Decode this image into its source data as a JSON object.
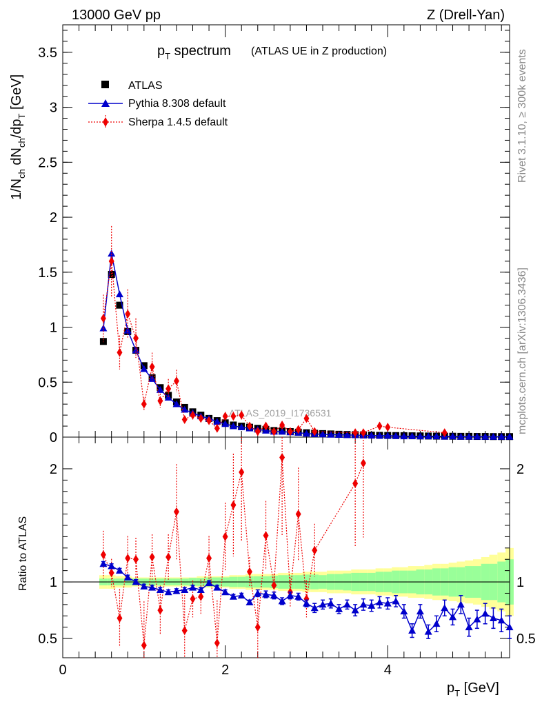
{
  "header": {
    "energy": "13000 GeV pp",
    "process": "Z (Drell-Yan)"
  },
  "side_text": {
    "rivet": "Rivet 3.1.10, ≥ 300k events",
    "source": "mcplots.cern.ch [arXiv:1306.3436]"
  },
  "plot_title": {
    "main": "p",
    "main_sub": "T",
    "main_rest": " spectrum",
    "note": "(ATLAS UE in Z production)"
  },
  "watermark": "ATLAS_2019_I1736531",
  "colors": {
    "atlas": "#000000",
    "pythia": "#0000cc",
    "sherpa": "#ee0000",
    "band_inner": "#99ff99",
    "band_outer": "#ffff99"
  },
  "chart_data": [
    {
      "type": "scatter",
      "panel": "main",
      "ylabel": "1/N_ch dN_ch/dp_T [GeV]",
      "ylabel_parts": {
        "a": "1/N",
        "a_sub": "ch",
        "b": " dN",
        "b_sub": "ch",
        "c": "/dp",
        "c_sub": "T",
        "d": " [GeV]"
      },
      "xlim": [
        0,
        5.5
      ],
      "ylim": [
        0,
        3.75
      ],
      "yticks": [
        0,
        0.5,
        1,
        1.5,
        2,
        2.5,
        3,
        3.5
      ],
      "ytick_labels": [
        "0",
        "0.5",
        "1",
        "1.5",
        "2",
        "2.5",
        "3",
        "3.5"
      ],
      "x": [
        0.5,
        0.6,
        0.7,
        0.8,
        0.9,
        1.0,
        1.1,
        1.2,
        1.3,
        1.4,
        1.5,
        1.6,
        1.7,
        1.8,
        1.9,
        2.0,
        2.1,
        2.2,
        2.3,
        2.4,
        2.5,
        2.6,
        2.7,
        2.8,
        2.9,
        3.0,
        3.1,
        3.2,
        3.3,
        3.4,
        3.5,
        3.6,
        3.7,
        3.8,
        3.9,
        4.0,
        4.1,
        4.2,
        4.3,
        4.4,
        4.5,
        4.6,
        4.7,
        4.8,
        4.9,
        5.0,
        5.1,
        5.2,
        5.3,
        5.4,
        5.5
      ],
      "series": [
        {
          "name": "ATLAS",
          "marker": "square",
          "values": [
            0.87,
            1.48,
            1.2,
            0.96,
            0.79,
            0.65,
            0.54,
            0.45,
            0.38,
            0.32,
            0.27,
            0.23,
            0.2,
            0.17,
            0.15,
            0.13,
            0.11,
            0.1,
            0.09,
            0.08,
            0.07,
            0.06,
            0.055,
            0.05,
            0.045,
            0.04,
            0.035,
            0.032,
            0.029,
            0.026,
            0.024,
            0.022,
            0.02,
            0.018,
            0.016,
            0.015,
            0.014,
            0.013,
            0.012,
            0.011,
            0.01,
            0.009,
            0.008,
            0.008,
            0.007,
            0.007,
            0.006,
            0.006,
            0.005,
            0.005,
            0.005
          ]
        },
        {
          "name": "Pythia 8.308 default",
          "marker": "triangle",
          "values": [
            0.99,
            1.67,
            1.3,
            0.97,
            0.79,
            0.62,
            0.53,
            0.43,
            0.36,
            0.3,
            0.25,
            0.22,
            0.19,
            0.17,
            0.14,
            0.12,
            0.1,
            0.09,
            0.08,
            0.07,
            0.06,
            0.05,
            0.05,
            0.045,
            0.04,
            0.032,
            0.028,
            0.026,
            0.023,
            0.021,
            0.019,
            0.018,
            0.016,
            0.015,
            0.013,
            0.013,
            0.011,
            0.008,
            0.009,
            0.007,
            0.008,
            0.008,
            0.006,
            0.007,
            0.005,
            0.005,
            0.005,
            0.004,
            0.004,
            0.004,
            0.004
          ]
        },
        {
          "name": "Sherpa 1.4.5 default",
          "marker": "diamond",
          "x": [
            0.5,
            0.6,
            0.7,
            0.8,
            0.9,
            1.0,
            1.1,
            1.2,
            1.3,
            1.4,
            1.5,
            1.6,
            1.7,
            1.8,
            1.9,
            2.0,
            2.1,
            2.2,
            2.3,
            2.4,
            2.5,
            2.6,
            2.7,
            2.8,
            2.9,
            3.0,
            3.1,
            3.6,
            3.7,
            3.9,
            4.0,
            4.7
          ],
          "values": [
            1.08,
            1.6,
            0.77,
            1.12,
            0.9,
            0.3,
            0.64,
            0.33,
            0.44,
            0.51,
            0.16,
            0.2,
            0.17,
            0.15,
            0.08,
            0.19,
            0.19,
            0.2,
            0.1,
            0.05,
            0.1,
            0.05,
            0.11,
            0.05,
            0.07,
            0.17,
            0.05,
            0.04,
            0.04,
            0.1,
            0.09,
            0.04
          ]
        }
      ]
    },
    {
      "type": "scatter",
      "panel": "ratio",
      "ylabel": "Ratio to ATLAS",
      "xlabel": "p_T [GeV]",
      "xlabel_parts": {
        "a": "p",
        "a_sub": "T",
        "b": " [GeV]"
      },
      "xlim": [
        0,
        5.5
      ],
      "ylim": [
        0.33,
        2.28
      ],
      "xticks": [
        0,
        2,
        4
      ],
      "xtick_labels": [
        "0",
        "2",
        "4"
      ],
      "yticks": [
        0.5,
        1,
        2
      ],
      "ytick_labels": [
        "0.5",
        "1",
        "2"
      ],
      "x": [
        0.5,
        0.6,
        0.7,
        0.8,
        0.9,
        1.0,
        1.1,
        1.2,
        1.3,
        1.4,
        1.5,
        1.6,
        1.7,
        1.8,
        1.9,
        2.0,
        2.1,
        2.2,
        2.3,
        2.4,
        2.5,
        2.6,
        2.7,
        2.8,
        2.9,
        3.0,
        3.1,
        3.2,
        3.3,
        3.4,
        3.5,
        3.6,
        3.7,
        3.8,
        3.9,
        4.0,
        4.1,
        4.2,
        4.3,
        4.4,
        4.5,
        4.6,
        4.7,
        4.8,
        4.9,
        5.0,
        5.1,
        5.2,
        5.3,
        5.4,
        5.5
      ],
      "band_inner_halfwidth": [
        0.03,
        0.03,
        0.03,
        0.03,
        0.03,
        0.03,
        0.03,
        0.03,
        0.03,
        0.03,
        0.03,
        0.035,
        0.035,
        0.04,
        0.04,
        0.04,
        0.045,
        0.045,
        0.05,
        0.05,
        0.05,
        0.055,
        0.06,
        0.06,
        0.06,
        0.065,
        0.065,
        0.06,
        0.07,
        0.07,
        0.075,
        0.08,
        0.08,
        0.08,
        0.09,
        0.09,
        0.1,
        0.1,
        0.1,
        0.11,
        0.11,
        0.12,
        0.12,
        0.13,
        0.13,
        0.14,
        0.14,
        0.16,
        0.16,
        0.18,
        0.2
      ],
      "band_outer_halfwidth": [
        0.06,
        0.06,
        0.05,
        0.05,
        0.04,
        0.04,
        0.04,
        0.04,
        0.04,
        0.04,
        0.04,
        0.04,
        0.05,
        0.05,
        0.05,
        0.05,
        0.06,
        0.06,
        0.07,
        0.07,
        0.07,
        0.07,
        0.08,
        0.08,
        0.08,
        0.09,
        0.09,
        0.09,
        0.1,
        0.1,
        0.1,
        0.11,
        0.11,
        0.11,
        0.12,
        0.12,
        0.13,
        0.13,
        0.14,
        0.14,
        0.15,
        0.16,
        0.16,
        0.17,
        0.18,
        0.19,
        0.2,
        0.22,
        0.24,
        0.26,
        0.3
      ],
      "series": [
        {
          "name": "Pythia 8.308 default",
          "values": [
            1.16,
            1.14,
            1.1,
            1.04,
            1.0,
            0.96,
            0.95,
            0.93,
            0.91,
            0.92,
            0.93,
            0.95,
            0.93,
            0.99,
            0.95,
            0.91,
            0.87,
            0.88,
            0.82,
            0.9,
            0.89,
            0.88,
            0.83,
            0.88,
            0.87,
            0.81,
            0.77,
            0.8,
            0.81,
            0.76,
            0.8,
            0.75,
            0.8,
            0.79,
            0.82,
            0.81,
            0.83,
            0.74,
            0.57,
            0.74,
            0.56,
            0.63,
            0.77,
            0.69,
            0.8,
            0.6,
            0.67,
            0.72,
            0.68,
            0.66,
            0.6
          ],
          "err": [
            0.02,
            0.02,
            0.02,
            0.02,
            0.02,
            0.02,
            0.02,
            0.02,
            0.02,
            0.02,
            0.02,
            0.02,
            0.02,
            0.02,
            0.02,
            0.02,
            0.02,
            0.02,
            0.02,
            0.03,
            0.03,
            0.03,
            0.03,
            0.03,
            0.03,
            0.03,
            0.04,
            0.04,
            0.04,
            0.04,
            0.04,
            0.05,
            0.05,
            0.05,
            0.05,
            0.05,
            0.05,
            0.06,
            0.06,
            0.06,
            0.06,
            0.07,
            0.07,
            0.07,
            0.08,
            0.08,
            0.08,
            0.09,
            0.09,
            0.1,
            0.1
          ]
        },
        {
          "name": "Sherpa 1.4.5 default",
          "x": [
            0.5,
            0.6,
            0.7,
            0.8,
            0.9,
            1.0,
            1.1,
            1.2,
            1.3,
            1.4,
            1.5,
            1.6,
            1.7,
            1.8,
            1.9,
            2.0,
            2.1,
            2.2,
            2.3,
            2.4,
            2.5,
            2.6,
            2.7,
            2.8,
            2.9,
            3.0,
            3.1,
            3.6,
            3.7
          ],
          "values": [
            1.24,
            1.08,
            0.68,
            1.21,
            1.2,
            0.44,
            1.22,
            0.75,
            1.22,
            1.62,
            0.57,
            0.85,
            0.87,
            1.21,
            0.46,
            1.4,
            1.68,
            1.97,
            1.09,
            0.6,
            1.41,
            0.97,
            2.1,
            0.91,
            1.6,
            0.85,
            1.28,
            1.87,
            2.05
          ]
        }
      ]
    }
  ]
}
